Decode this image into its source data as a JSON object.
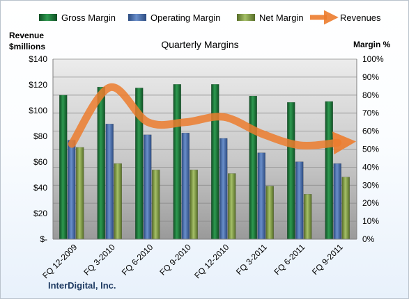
{
  "chart_data": {
    "type": "bar",
    "title": "Quarterly Margins",
    "footer": "InterDigital, Inc.",
    "ylabel_left": [
      "Revenue",
      "$millions"
    ],
    "ylabel_right": "Margin %",
    "ylim_left": [
      0,
      140
    ],
    "ylim_right": [
      0,
      100
    ],
    "yticks_left": [
      "$-",
      "$20",
      "$40",
      "$60",
      "$80",
      "$100",
      "$120",
      "$140"
    ],
    "yticks_right": [
      "0%",
      "10%",
      "20%",
      "30%",
      "40%",
      "50%",
      "60%",
      "70%",
      "80%",
      "90%",
      "100%"
    ],
    "categories": [
      "FQ 12-2009",
      "FQ 3-2010",
      "FQ 6-2010",
      "FQ 9-2010",
      "FQ 12-2010",
      "FQ 3-2011",
      "FQ 6-2011",
      "FQ 9-2011"
    ],
    "series": [
      {
        "name": "Gross Margin",
        "axis": "right",
        "color": "#1e7a3c",
        "values": [
          80,
          84.5,
          84,
          86,
          86,
          79.5,
          76,
          76.5
        ]
      },
      {
        "name": "Operating Margin",
        "axis": "right",
        "color": "#4a72b0",
        "values": [
          55,
          64,
          58,
          59,
          56,
          48,
          43,
          42
        ]
      },
      {
        "name": "Net Margin",
        "axis": "right",
        "color": "#7e9b43",
        "values": [
          51,
          42,
          38.5,
          38.5,
          36.5,
          29.5,
          25,
          34.5
        ]
      },
      {
        "name": "Revenues",
        "axis": "left",
        "type": "line",
        "color": "#ec7c2e",
        "values": [
          74,
          118,
          91,
          91,
          95,
          82,
          73,
          75
        ]
      }
    ],
    "grid": true,
    "legend": "top"
  }
}
